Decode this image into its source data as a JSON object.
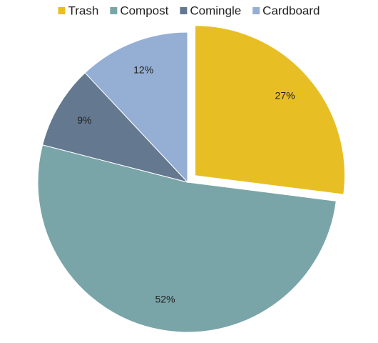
{
  "chart_data": {
    "type": "pie",
    "categories": [
      "Trash",
      "Compost",
      "Comingle",
      "Cardboard"
    ],
    "values": [
      27,
      52,
      9,
      12
    ],
    "value_labels": [
      "27%",
      "52%",
      "9%",
      "12%"
    ],
    "colors": [
      "#e8be25",
      "#7aa5a8",
      "#64788f",
      "#95afd4"
    ],
    "exploded": [
      true,
      false,
      false,
      false
    ],
    "legend": "top"
  }
}
